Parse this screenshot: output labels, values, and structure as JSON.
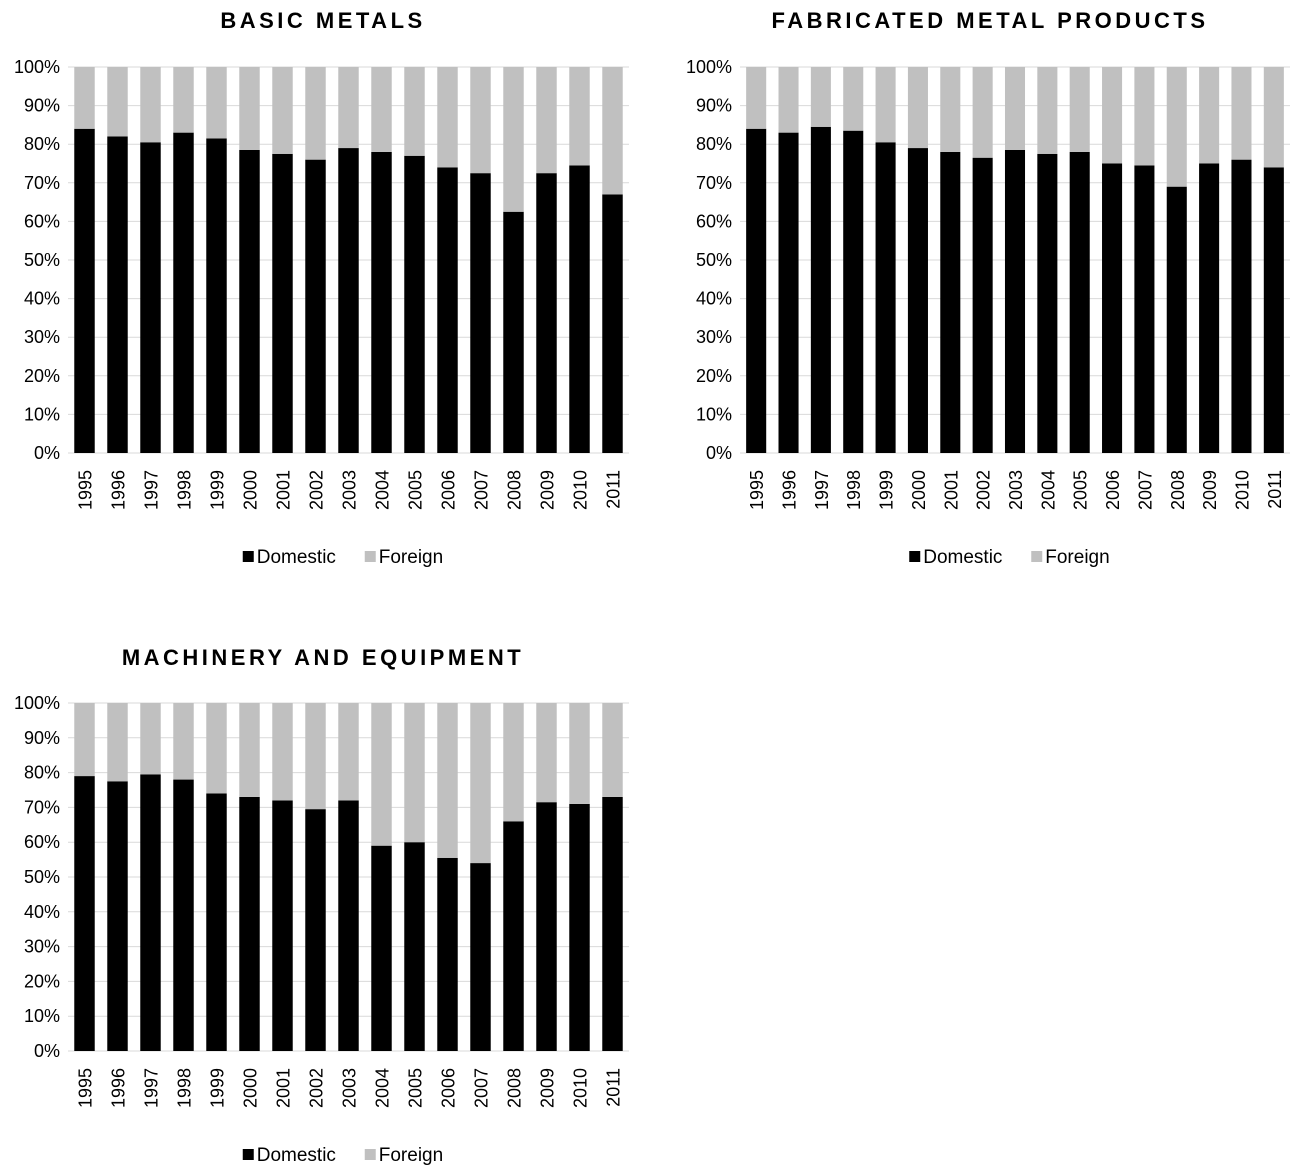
{
  "colors": {
    "domestic": "#000000",
    "foreign": "#c0c0c0",
    "grid": "#d9d9d9"
  },
  "chart_data": [
    {
      "type": "bar",
      "stacked": true,
      "normalized": true,
      "title": "BASIC METALS",
      "categories": [
        "1995",
        "1996",
        "1997",
        "1998",
        "1999",
        "2000",
        "2001",
        "2002",
        "2003",
        "2004",
        "2005",
        "2006",
        "2007",
        "2008",
        "2009",
        "2010",
        "2011"
      ],
      "series": [
        {
          "name": "Domestic",
          "values": [
            84,
            82,
            80.5,
            83,
            81.5,
            78.5,
            77.5,
            76,
            79,
            78,
            77,
            74,
            72.5,
            62.5,
            72.5,
            74.5,
            67
          ]
        },
        {
          "name": "Foreign",
          "values": [
            16,
            18,
            19.5,
            17,
            18.5,
            21.5,
            22.5,
            24,
            21,
            22,
            23,
            26,
            27.5,
            37.5,
            27.5,
            25.5,
            33
          ]
        }
      ],
      "ylim": [
        0,
        100
      ],
      "yticks": [
        "0%",
        "10%",
        "20%",
        "30%",
        "40%",
        "50%",
        "60%",
        "70%",
        "80%",
        "90%",
        "100%"
      ],
      "legend": "bottom",
      "grid": true
    },
    {
      "type": "bar",
      "stacked": true,
      "normalized": true,
      "title": "FABRICATED METAL PRODUCTS",
      "categories": [
        "1995",
        "1996",
        "1997",
        "1998",
        "1999",
        "2000",
        "2001",
        "2002",
        "2003",
        "2004",
        "2005",
        "2006",
        "2007",
        "2008",
        "2009",
        "2010",
        "2011"
      ],
      "series": [
        {
          "name": "Domestic",
          "values": [
            84,
            83,
            84.5,
            83.5,
            80.5,
            79,
            78,
            76.5,
            78.5,
            77.5,
            78,
            75,
            74.5,
            69,
            75,
            76,
            74
          ]
        },
        {
          "name": "Foreign",
          "values": [
            16,
            17,
            15.5,
            16.5,
            19.5,
            21,
            22,
            23.5,
            21.5,
            22.5,
            22,
            25,
            25.5,
            31,
            25,
            24,
            26
          ]
        }
      ],
      "ylim": [
        0,
        100
      ],
      "yticks": [
        "0%",
        "10%",
        "20%",
        "30%",
        "40%",
        "50%",
        "60%",
        "70%",
        "80%",
        "90%",
        "100%"
      ],
      "legend": "bottom",
      "grid": true
    },
    {
      "type": "bar",
      "stacked": true,
      "normalized": true,
      "title": "MACHINERY AND EQUIPMENT",
      "categories": [
        "1995",
        "1996",
        "1997",
        "1998",
        "1999",
        "2000",
        "2001",
        "2002",
        "2003",
        "2004",
        "2005",
        "2006",
        "2007",
        "2008",
        "2009",
        "2010",
        "2011"
      ],
      "series": [
        {
          "name": "Domestic",
          "values": [
            79,
            77.5,
            79.5,
            78,
            74,
            73,
            72,
            69.5,
            72,
            59,
            60,
            55.5,
            54,
            66,
            71.5,
            71,
            73
          ]
        },
        {
          "name": "Foreign",
          "values": [
            21,
            22.5,
            20.5,
            22,
            26,
            27,
            28,
            30.5,
            28,
            41,
            40,
            44.5,
            46,
            34,
            28.5,
            29,
            27
          ]
        }
      ],
      "ylim": [
        0,
        100
      ],
      "yticks": [
        "0%",
        "10%",
        "20%",
        "30%",
        "40%",
        "50%",
        "60%",
        "70%",
        "80%",
        "90%",
        "100%"
      ],
      "legend": "bottom",
      "grid": true
    }
  ]
}
